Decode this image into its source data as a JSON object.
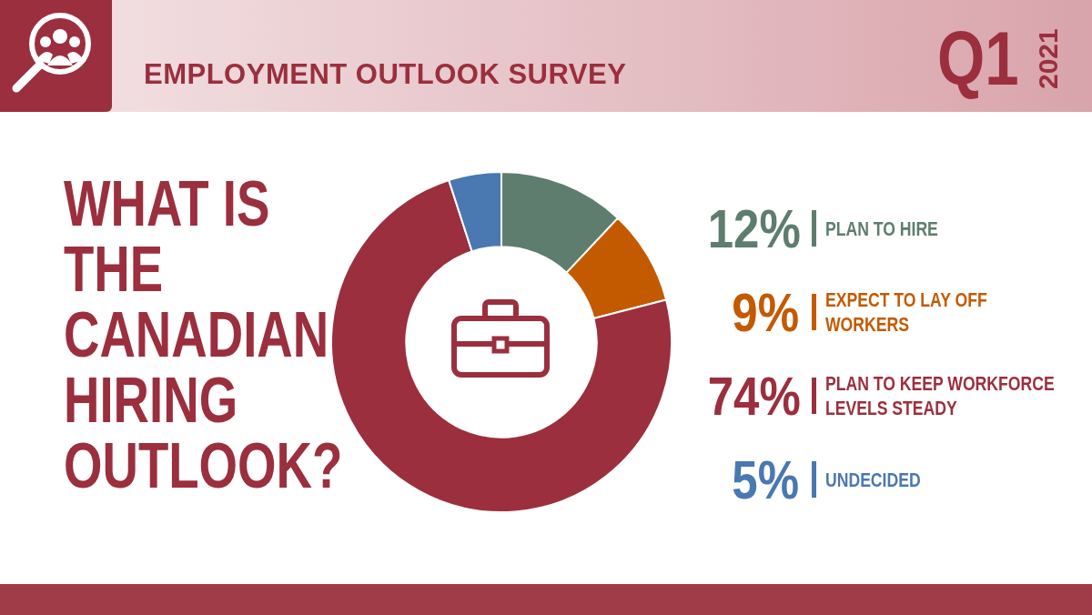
{
  "chart_data": {
    "type": "donut",
    "title": "WHAT IS THE CANADIAN HIRING OUTLOOK?",
    "subtitle": "EMPLOYMENT OUTLOOK SURVEY",
    "annotations": [
      "Q1",
      "2021"
    ],
    "categories": [
      "PLAN TO HIRE",
      "EXPECT TO LAY OFF WORKERS",
      "PLAN TO KEEP WORKFORCE LEVELS STEADY",
      "UNDECIDED"
    ],
    "values": [
      12,
      9,
      74,
      5
    ],
    "colors": [
      "#5e7d6e",
      "#c45a00",
      "#9b2f3e",
      "#4a78b0"
    ],
    "value_labels": [
      "12%",
      "9%",
      "74%",
      "5%"
    ],
    "legend": "right"
  }
}
